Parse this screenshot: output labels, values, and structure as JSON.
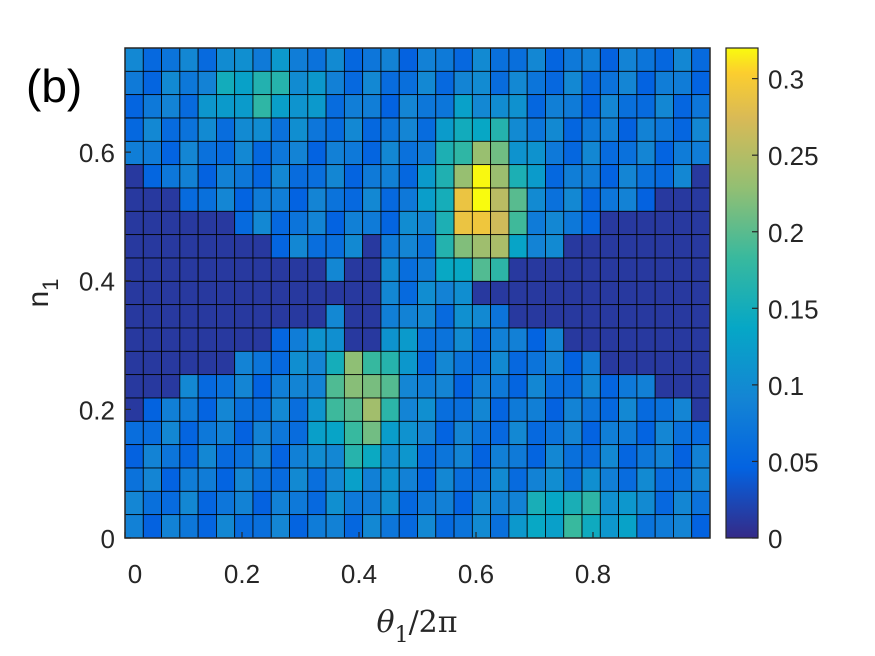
{
  "chart_data": {
    "type": "heatmap",
    "panel_label": "(b)",
    "xlabel": {
      "main": "θ",
      "sub": "1",
      "rest": "/2π"
    },
    "ylabel": {
      "main": "n",
      "sub": "1"
    },
    "x_ticks": [
      {
        "value": 0,
        "label": "0"
      },
      {
        "value": 0.2,
        "label": "0.2"
      },
      {
        "value": 0.4,
        "label": "0.4"
      },
      {
        "value": 0.6,
        "label": "0.6"
      },
      {
        "value": 0.8,
        "label": "0.8"
      }
    ],
    "y_ticks": [
      {
        "value": 0,
        "label": "0"
      },
      {
        "value": 0.2,
        "label": "0.2"
      },
      {
        "value": 0.4,
        "label": "0.4"
      },
      {
        "value": 0.6,
        "label": "0.6"
      }
    ],
    "colorbar_ticks": [
      {
        "value": 0,
        "label": "0"
      },
      {
        "value": 0.05,
        "label": "0.05"
      },
      {
        "value": 0.1,
        "label": "0.1"
      },
      {
        "value": 0.15,
        "label": "0.15"
      },
      {
        "value": 0.2,
        "label": "0.2"
      },
      {
        "value": 0.25,
        "label": "0.25"
      },
      {
        "value": 0.3,
        "label": "0.3"
      }
    ],
    "xlim": [
      0,
      1
    ],
    "ylim": [
      0,
      0.7619
    ],
    "clim": [
      0,
      0.32
    ],
    "colormap": "parula",
    "grid_size": [
      32,
      21
    ],
    "cell_width": 0.03125,
    "cell_height": 0.036281,
    "grid_lines": true
  }
}
